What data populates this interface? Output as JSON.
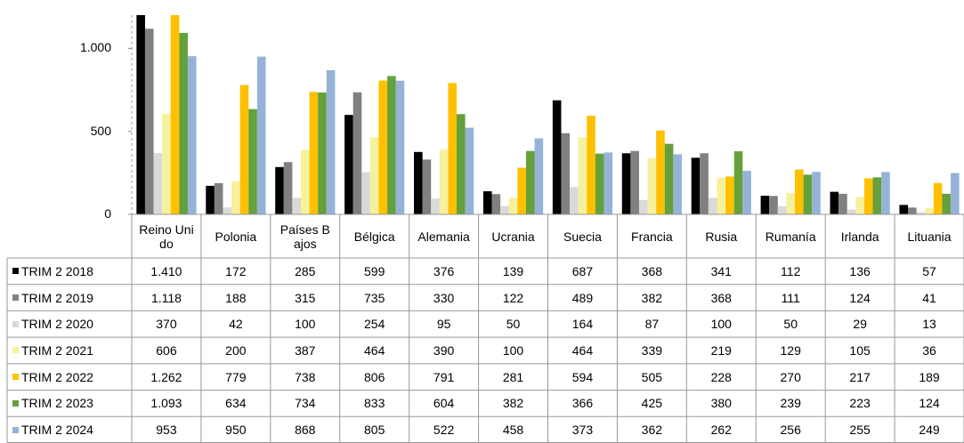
{
  "chart_data": {
    "type": "bar",
    "categories": [
      "Reino Unido",
      "Polonia",
      "Países Bajos",
      "Bélgica",
      "Alemania",
      "Ucrania",
      "Suecia",
      "Francia",
      "Rusia",
      "Rumanía",
      "Irlanda",
      "Lituania"
    ],
    "series": [
      {
        "name": "TRIM 2 2018",
        "color": "#000000",
        "values": [
          1410,
          172,
          285,
          599,
          376,
          139,
          687,
          368,
          341,
          112,
          136,
          57
        ],
        "value_labels": [
          "1.410",
          "172",
          "285",
          "599",
          "376",
          "139",
          "687",
          "368",
          "341",
          "112",
          "136",
          "57"
        ]
      },
      {
        "name": "TRIM 2 2019",
        "color": "#808080",
        "values": [
          1118,
          188,
          315,
          735,
          330,
          122,
          489,
          382,
          368,
          111,
          124,
          41
        ],
        "value_labels": [
          "1.118",
          "188",
          "315",
          "735",
          "330",
          "122",
          "489",
          "382",
          "368",
          "111",
          "124",
          "41"
        ]
      },
      {
        "name": "TRIM 2 2020",
        "color": "#d9d9d9",
        "values": [
          370,
          42,
          100,
          254,
          95,
          50,
          164,
          87,
          100,
          50,
          29,
          13
        ]
      },
      {
        "name": "TRIM 2 2021",
        "color": "#f7f09c",
        "values": [
          606,
          200,
          387,
          464,
          390,
          100,
          464,
          339,
          219,
          129,
          105,
          36
        ]
      },
      {
        "name": "TRIM 2 2022",
        "color": "#ffc000",
        "values": [
          1262,
          779,
          738,
          806,
          791,
          281,
          594,
          505,
          228,
          270,
          217,
          189
        ],
        "value_labels": [
          "1.262",
          "779",
          "738",
          "806",
          "791",
          "281",
          "594",
          "505",
          "228",
          "270",
          "217",
          "189"
        ]
      },
      {
        "name": "TRIM 2 2023",
        "color": "#64a03c",
        "values": [
          1093,
          634,
          734,
          833,
          604,
          382,
          366,
          425,
          380,
          239,
          223,
          124
        ],
        "value_labels": [
          "1.093",
          "634",
          "734",
          "833",
          "604",
          "382",
          "366",
          "425",
          "380",
          "239",
          "223",
          "124"
        ]
      },
      {
        "name": "TRIM 2 2024",
        "color": "#95b3d7",
        "values": [
          953,
          950,
          868,
          805,
          522,
          458,
          373,
          362,
          262,
          256,
          255,
          249
        ]
      }
    ],
    "ylim": [
      0,
      1200
    ],
    "yticks": [
      0,
      500,
      {
        "value": 1000,
        "label": "1.000"
      }
    ]
  }
}
